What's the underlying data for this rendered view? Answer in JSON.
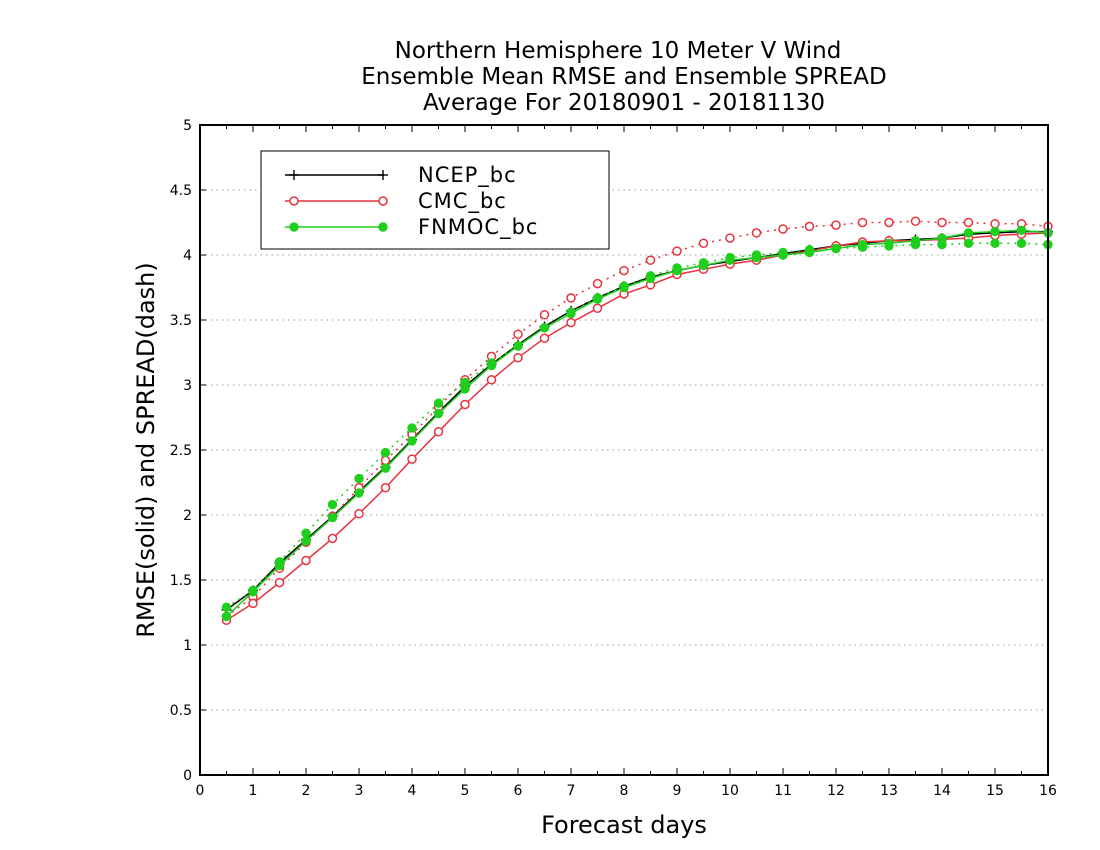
{
  "chart_data": {
    "type": "line",
    "title": [
      "Northern Hemisphere 10 Meter V Wind",
      "Ensemble Mean RMSE and Ensemble SPREAD",
      "Average For 20180901 - 20181130"
    ],
    "xlabel": "Forecast days",
    "ylabel": "RMSE(solid) and SPREAD(dash)",
    "xlim": [
      0,
      16
    ],
    "ylim": [
      0,
      5
    ],
    "xticks": [
      "0",
      "1",
      "2",
      "3",
      "4",
      "5",
      "6",
      "7",
      "8",
      "9",
      "10",
      "11",
      "12",
      "13",
      "14",
      "15",
      "16"
    ],
    "yticks": [
      "0",
      "0.5",
      "1",
      "1.5",
      "2",
      "2.5",
      "3",
      "3.5",
      "4",
      "4.5",
      "5"
    ],
    "grid": true,
    "legend_position": "top-left",
    "x": [
      0.5,
      1,
      1.5,
      2,
      2.5,
      3,
      3.5,
      4,
      4.5,
      5,
      5.5,
      6,
      6.5,
      7,
      7.5,
      8,
      8.5,
      9,
      9.5,
      10,
      10.5,
      11,
      11.5,
      12,
      12.5,
      13,
      13.5,
      14,
      14.5,
      15,
      15.5,
      16
    ],
    "series": [
      {
        "name": "NCEP_bc",
        "color": "#000000",
        "marker": "plus",
        "rmse": [
          1.27,
          1.42,
          1.63,
          1.81,
          1.99,
          2.18,
          2.37,
          2.58,
          2.79,
          2.99,
          3.16,
          3.31,
          3.45,
          3.57,
          3.67,
          3.76,
          3.83,
          3.88,
          3.92,
          3.95,
          3.98,
          4.01,
          4.04,
          4.07,
          4.09,
          4.11,
          4.12,
          4.13,
          4.16,
          4.17,
          4.18,
          4.18
        ],
        "spread": null
      },
      {
        "name": "CMC_bc",
        "color": "#e8323c",
        "marker": "open-circle",
        "rmse": [
          1.19,
          1.32,
          1.48,
          1.65,
          1.82,
          2.01,
          2.21,
          2.43,
          2.64,
          2.85,
          3.04,
          3.21,
          3.36,
          3.48,
          3.59,
          3.7,
          3.77,
          3.85,
          3.89,
          3.93,
          3.96,
          4.0,
          4.03,
          4.07,
          4.1,
          4.11,
          4.11,
          4.12,
          4.13,
          4.15,
          4.16,
          4.17
        ],
        "spread": [
          1.22,
          1.37,
          1.59,
          1.79,
          1.99,
          2.21,
          2.42,
          2.62,
          2.83,
          3.04,
          3.22,
          3.39,
          3.54,
          3.67,
          3.78,
          3.88,
          3.96,
          4.03,
          4.09,
          4.13,
          4.17,
          4.2,
          4.22,
          4.23,
          4.25,
          4.25,
          4.26,
          4.25,
          4.25,
          4.24,
          4.24,
          4.22
        ]
      },
      {
        "name": "FNMOC_bc",
        "color": "#1ecf1e",
        "marker": "filled-circle",
        "rmse": [
          1.22,
          1.41,
          1.61,
          1.8,
          1.98,
          2.17,
          2.36,
          2.57,
          2.78,
          2.97,
          3.15,
          3.3,
          3.44,
          3.55,
          3.66,
          3.75,
          3.82,
          3.88,
          3.92,
          3.96,
          3.98,
          4.0,
          4.02,
          4.05,
          4.08,
          4.09,
          4.11,
          4.13,
          4.17,
          4.18,
          4.19,
          4.17
        ],
        "spread": [
          1.29,
          1.42,
          1.64,
          1.86,
          2.08,
          2.28,
          2.48,
          2.67,
          2.86,
          3.02,
          3.17,
          3.3,
          3.44,
          3.56,
          3.67,
          3.76,
          3.84,
          3.9,
          3.94,
          3.98,
          4.0,
          4.02,
          4.04,
          4.05,
          4.06,
          4.07,
          4.08,
          4.08,
          4.09,
          4.09,
          4.09,
          4.08
        ]
      }
    ]
  }
}
